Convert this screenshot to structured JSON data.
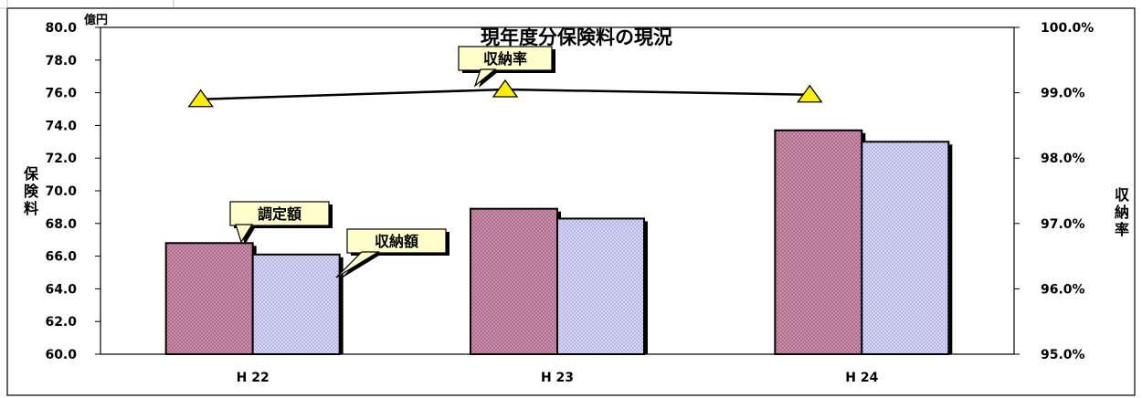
{
  "chart_data": {
    "type": "bar",
    "title": "現年度分保険料の現況",
    "categories": [
      "H 22",
      "H 23",
      "H 24"
    ],
    "series": [
      {
        "name": "調定額",
        "type": "bar",
        "axis": "left",
        "values": [
          66.8,
          68.9,
          73.7
        ]
      },
      {
        "name": "収納額",
        "type": "bar",
        "axis": "left",
        "values": [
          66.1,
          68.3,
          73.0
        ]
      },
      {
        "name": "収納率",
        "type": "line",
        "axis": "right",
        "values": [
          98.9,
          99.05,
          98.97
        ]
      }
    ],
    "y_left": {
      "unit": "億円",
      "label": "保険料",
      "range": [
        60.0,
        80.0
      ],
      "ticks": [
        "60.0",
        "62.0",
        "64.0",
        "66.0",
        "68.0",
        "70.0",
        "72.0",
        "74.0",
        "76.0",
        "78.0",
        "80.0"
      ]
    },
    "y_right": {
      "label": "収納率",
      "range": [
        95.0,
        100.0
      ],
      "ticks": [
        "95.0%",
        "96.0%",
        "97.0%",
        "98.0%",
        "99.0%",
        "100.0%"
      ]
    },
    "callouts": {
      "rate": "収納率",
      "assessed": "調定額",
      "collected": "収納額"
    },
    "grid": false,
    "legend": "callouts"
  },
  "colors": {
    "assessed_fill": "#c78ea6",
    "collected_fill": "#c8c8ee",
    "marker_fill": "#ffee00",
    "callout_fill": "#ffffcc",
    "line": "#000000"
  }
}
